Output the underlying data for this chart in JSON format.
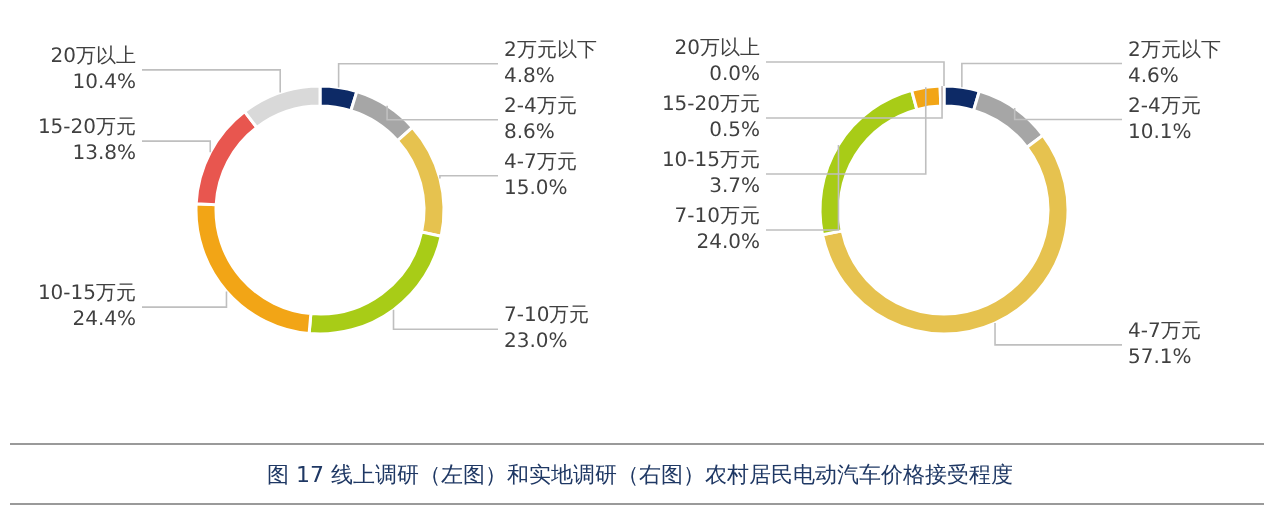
{
  "chart_data": [
    {
      "type": "donut",
      "title": "图 17 线上调研（左图）和实地调研（右图）农村居民电动汽车价格接受程度",
      "categories": [
        "2万元以下",
        "2-4万元",
        "4-7万元",
        "7-10万元",
        "10-15万元",
        "15-20万元",
        "20万以上"
      ],
      "values": [
        4.8,
        8.6,
        15.0,
        23.0,
        24.4,
        13.8,
        10.4
      ],
      "value_labels": [
        "4.8%",
        "8.6%",
        "15.0%",
        "23.0%",
        "24.4%",
        "13.8%",
        "10.4%"
      ],
      "colors": [
        "#0d2a66",
        "#a6a6a6",
        "#e6c24f",
        "#a8cc17",
        "#f2a516",
        "#e8564f",
        "#d9d9d9"
      ]
    },
    {
      "type": "donut",
      "categories": [
        "2万元以下",
        "2-4万元",
        "4-7万元",
        "7-10万元",
        "10-15万元",
        "15-20万元",
        "20万以上"
      ],
      "values": [
        4.6,
        10.1,
        57.1,
        24.0,
        3.7,
        0.5,
        0.0
      ],
      "value_labels": [
        "4.6%",
        "10.1%",
        "57.1%",
        "24.0%",
        "3.7%",
        "0.5%",
        "0.0%"
      ],
      "colors": [
        "#0d2a66",
        "#a6a6a6",
        "#e6c24f",
        "#a8cc17",
        "#f2a516",
        "#e8564f",
        null
      ]
    }
  ]
}
